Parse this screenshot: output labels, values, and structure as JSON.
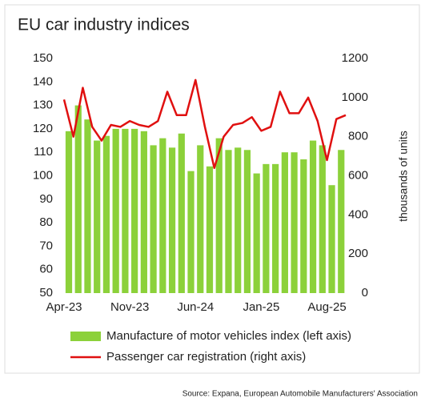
{
  "chart_data": {
    "type": "bar_line",
    "title": "EU car industry indices",
    "source": "Source: Expana, European Automobile Manufacturers' Association",
    "y2_label": "thousands of units",
    "categories": [
      "Apr-23",
      null,
      null,
      null,
      null,
      null,
      null,
      "Nov-23",
      null,
      null,
      null,
      null,
      null,
      null,
      "Jun-24",
      null,
      null,
      null,
      null,
      null,
      null,
      "Jan-25",
      null,
      null,
      null,
      null,
      null,
      null,
      "Aug-25",
      null,
      null
    ],
    "series": [
      {
        "name": "Manufacture of motor vehicles index (left axis)",
        "color": "#8cd13a",
        "kind": "bar",
        "values": [
          119,
          130,
          124,
          115,
          117,
          120,
          120,
          120,
          119,
          113,
          116,
          112,
          118,
          102,
          113,
          104,
          116,
          111,
          112,
          111,
          101,
          105,
          105,
          110,
          110,
          107,
          115,
          113,
          96,
          111,
          null
        ]
      },
      {
        "name": "Passenger car registration (right axis)",
        "color": "#e01010",
        "kind": "line",
        "axis": "y2",
        "values": [
          990,
          800,
          1050,
          850,
          780,
          860,
          850,
          880,
          860,
          850,
          880,
          1030,
          910,
          910,
          1090,
          850,
          640,
          800,
          860,
          870,
          900,
          830,
          850,
          1030,
          920,
          920,
          1000,
          880,
          680,
          890,
          910
        ]
      }
    ],
    "ylim": [
      50,
      150
    ],
    "yticks": [
      50,
      60,
      70,
      80,
      90,
      100,
      110,
      120,
      130,
      140,
      150
    ],
    "y2lim": [
      0,
      1200
    ],
    "y2ticks": [
      0,
      200,
      400,
      600,
      800,
      1000,
      1200
    ]
  }
}
